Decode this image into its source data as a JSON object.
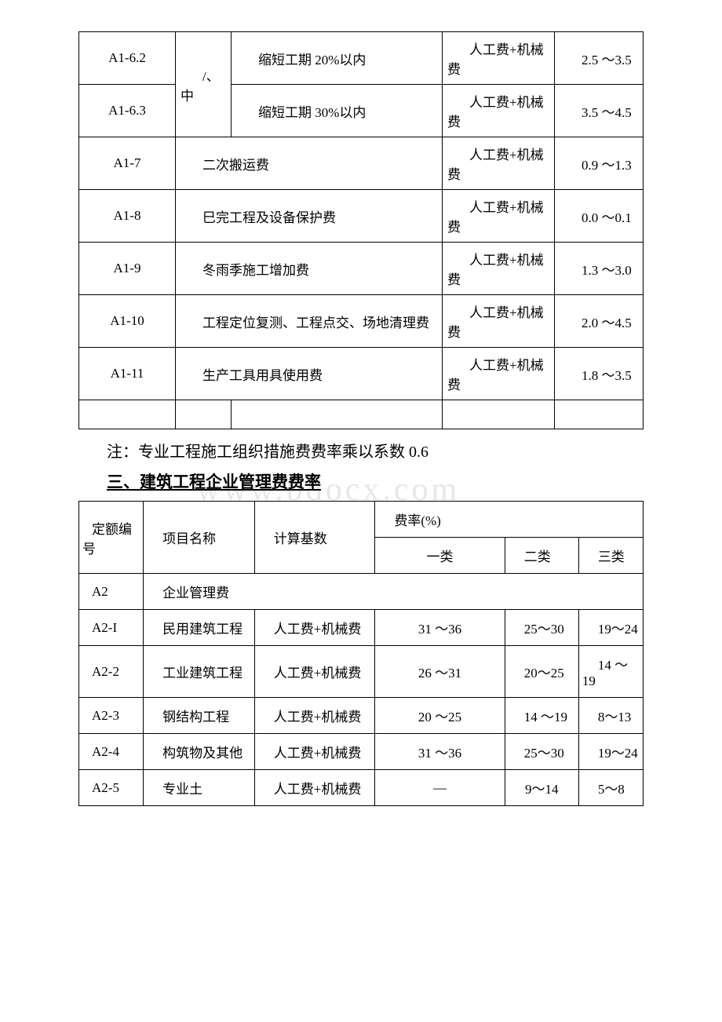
{
  "table1": {
    "rows": [
      {
        "code": "A1-6.2",
        "group": "/、\n中",
        "name": "缩短工期 20%以内",
        "base": "人工费+机械费",
        "rate": "2.5 ～3.5"
      },
      {
        "code": "A1-6.3",
        "group": "",
        "name": "缩短工期 30%以内",
        "base": "人工费+机械费",
        "rate": "3.5 ～4.5"
      },
      {
        "code": "A1-7",
        "name": "二次搬运费",
        "base": "人工费+机械费",
        "rate": "0.9 ～1.3"
      },
      {
        "code": "A1-8",
        "name": "巳完工程及设备保护费",
        "base": "人工费+机械费",
        "rate": "0.0 ～0.1"
      },
      {
        "code": "A1-9",
        "name": "冬雨季施工增加费",
        "base": "人工费+机械费",
        "rate": "1.3 ～3.0"
      },
      {
        "code": "A1-10",
        "name": "工程定位复测、工程点交、场地清理费",
        "base": "人工费+机械费",
        "rate": "2.0 ～4.5"
      },
      {
        "code": "A1-11",
        "name": "生产工具用具使用费",
        "base": "人工费+机械费",
        "rate": "1.8 ～3.5"
      }
    ]
  },
  "note_text": "注：专业工程施工组织措施费费率乘以系数 0.6",
  "heading_text": "三、建筑工程企业管理费费率",
  "watermark_text": "www.bdocx.com",
  "table2": {
    "header": {
      "col1": "定额编号",
      "col2": "项目名称",
      "col3": "计算基数",
      "rate_label": "费率(%)",
      "r1": "一类",
      "r2": "二类",
      "r3": "三类"
    },
    "rows": [
      {
        "code": "A2",
        "name": "企业管理费",
        "base": "",
        "r1": "",
        "r2": "",
        "r3": "",
        "span": true
      },
      {
        "code": "A2-I",
        "name": "民用建筑工程",
        "base": "人工费+机械费",
        "r1": "31 ～36",
        "r2": "25～30",
        "r3": "19～24"
      },
      {
        "code": "A2-2",
        "name": "工业建筑工程",
        "base": "人工费+机械费",
        "r1": "26 ～31",
        "r2": "20～25",
        "r3": "14 ～19"
      },
      {
        "code": "A2-3",
        "name": "钢结构工程",
        "base": "人工费+机械费",
        "r1": "20 ～25",
        "r2": "14 ～19",
        "r3": "8～13"
      },
      {
        "code": "A2-4",
        "name": "构筑物及其他",
        "base": "人工费+机械费",
        "r1": "31 ～36",
        "r2": "25～30",
        "r3": "19～24"
      },
      {
        "code": "A2-5",
        "name": "专业土",
        "base": "人工费+机械费",
        "r1": "—",
        "r2": "9～14",
        "r3": "5～8",
        "merge12": true
      }
    ]
  }
}
